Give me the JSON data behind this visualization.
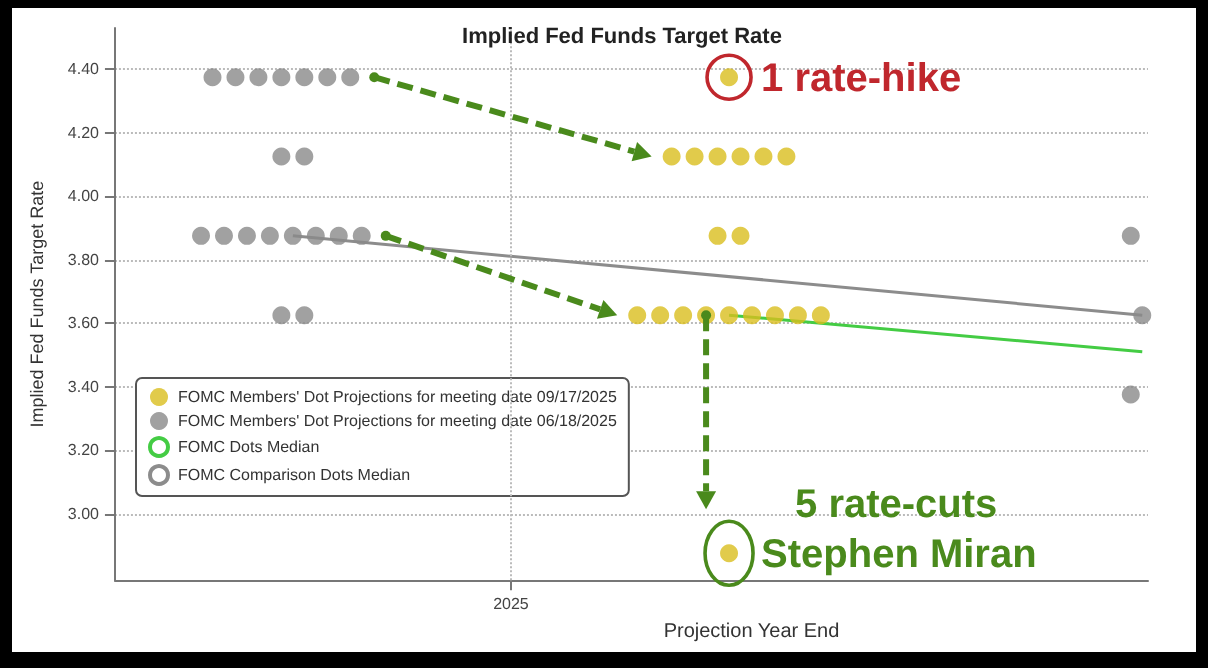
{
  "chart_data": {
    "type": "scatter",
    "title": "Implied Fed Funds Target Rate",
    "xlabel": "Projection Year End",
    "ylabel": "Implied Fed Funds Target Rate",
    "categories": [
      null,
      null,
      null,
      null,
      null,
      null,
      null,
      null,
      null,
      null,
      null,
      null,
      null,
      null,
      null,
      null,
      null,
      null,
      null,
      null,
      null,
      null,
      null,
      null,
      null,
      null,
      null,
      null,
      null,
      null,
      null,
      null,
      null,
      null,
      "2025",
      null,
      null,
      null,
      null,
      null,
      null,
      null,
      null,
      null,
      null,
      null,
      null,
      null,
      null,
      null,
      null,
      null,
      null,
      null,
      null,
      null,
      null,
      null,
      null,
      null,
      null,
      null,
      null,
      null,
      null,
      null,
      null,
      null,
      null,
      null,
      null,
      null,
      null,
      null,
      null,
      null,
      null,
      null,
      null,
      null,
      null,
      null,
      null,
      null,
      null,
      null,
      null,
      null,
      null,
      null
    ],
    "series": [
      {
        "name": "FOMC Members' Dot Projections for meeting date 09/17/2025",
        "color": "#d9be1e",
        "marker": "circle",
        "values": [
          null,
          null,
          null,
          null,
          null,
          null,
          null,
          null,
          null,
          null,
          null,
          null,
          null,
          null,
          null,
          null,
          null,
          null,
          null,
          null,
          null,
          null,
          null,
          null,
          null,
          null,
          null,
          null,
          null,
          null,
          null,
          null,
          null,
          null,
          null,
          null,
          null,
          null,
          null,
          null,
          null,
          null,
          null,
          null,
          null,
          3.625,
          null,
          3.625,
          4.125,
          3.625,
          4.125,
          3.625,
          4.125,
          3.625,
          4.125,
          3.625,
          4.125,
          3.625,
          4.125,
          3.625,
          null,
          3.625,
          null,
          null,
          null,
          null,
          null,
          null,
          null,
          null,
          null,
          null,
          null,
          null,
          null,
          null,
          null,
          null,
          null,
          null,
          null,
          null,
          null,
          null,
          null,
          null,
          null,
          null,
          null,
          null
        ]
      },
      {
        "color": "#d9be1e",
        "marker": "circle",
        "values": [
          null,
          null,
          null,
          null,
          null,
          null,
          null,
          null,
          null,
          null,
          null,
          null,
          null,
          null,
          null,
          null,
          null,
          null,
          null,
          null,
          null,
          null,
          null,
          null,
          null,
          null,
          null,
          null,
          null,
          null,
          null,
          null,
          null,
          null,
          null,
          null,
          null,
          null,
          null,
          null,
          null,
          null,
          null,
          null,
          null,
          null,
          null,
          null,
          null,
          null,
          null,
          null,
          3.875,
          4.375,
          3.875,
          null,
          null,
          null,
          null,
          null,
          null,
          null,
          null,
          null,
          null,
          null,
          null,
          null,
          null,
          null,
          null,
          null,
          null,
          null,
          null,
          null,
          null,
          null,
          null,
          null,
          null,
          null,
          null,
          null,
          null,
          null,
          null,
          null,
          null,
          null
        ]
      },
      {
        "color": "#d9be1e",
        "marker": "circle",
        "values": [
          null,
          null,
          null,
          null,
          null,
          null,
          null,
          null,
          null,
          null,
          null,
          null,
          null,
          null,
          null,
          null,
          null,
          null,
          null,
          null,
          null,
          null,
          null,
          null,
          null,
          null,
          null,
          null,
          null,
          null,
          null,
          null,
          null,
          null,
          null,
          null,
          null,
          null,
          null,
          null,
          null,
          null,
          null,
          null,
          null,
          null,
          null,
          null,
          null,
          null,
          null,
          null,
          null,
          2.875,
          null,
          null,
          null,
          null,
          null,
          null,
          null,
          null,
          null,
          null,
          null,
          null,
          null,
          null,
          null,
          null,
          null,
          null,
          null,
          null,
          null,
          null,
          null,
          null,
          null,
          null,
          null,
          null,
          null,
          null,
          null,
          null,
          null,
          null,
          null,
          null
        ]
      },
      {
        "name": "FOMC Members' Dot Projections for meeting date 06/18/2025",
        "color": "#8a8a8a",
        "marker": "circle",
        "values": [
          null,
          null,
          null,
          null,
          null,
          null,
          null,
          3.875,
          4.375,
          3.875,
          4.375,
          3.875,
          4.375,
          3.875,
          4.375,
          3.875,
          4.375,
          3.875,
          4.375,
          3.875,
          4.375,
          3.875,
          null,
          null,
          null,
          null,
          null,
          null,
          null,
          null,
          null,
          null,
          null,
          null,
          null,
          null,
          null,
          null,
          null,
          null,
          null,
          null,
          null,
          null,
          null,
          null,
          null,
          null,
          null,
          null,
          null,
          null,
          null,
          null,
          null,
          null,
          null,
          null,
          null,
          null,
          null,
          null,
          null,
          null,
          null,
          null,
          null,
          null,
          null,
          null,
          null,
          null,
          null,
          null,
          null,
          null,
          null,
          null,
          null,
          null,
          null,
          null,
          null,
          null,
          null,
          null,
          null,
          null,
          3.875,
          3.625
        ]
      },
      {
        "color": "#8a8a8a",
        "marker": "circle",
        "values": [
          null,
          null,
          null,
          null,
          null,
          null,
          null,
          null,
          null,
          null,
          null,
          null,
          null,
          null,
          4.125,
          null,
          4.125,
          null,
          null,
          null,
          null,
          null,
          null,
          null,
          null,
          null,
          null,
          null,
          null,
          null,
          null,
          null,
          null,
          null,
          null,
          null,
          null,
          null,
          null,
          null,
          null,
          null,
          null,
          null,
          null,
          null,
          null,
          null,
          null,
          null,
          null,
          null,
          null,
          null,
          null,
          null,
          null,
          null,
          null,
          null,
          null,
          null,
          null,
          null,
          null,
          null,
          null,
          null,
          null,
          null,
          null,
          null,
          null,
          null,
          null,
          null,
          null,
          null,
          null,
          null,
          null,
          null,
          null,
          null,
          null,
          null,
          null,
          null,
          3.375,
          null
        ]
      },
      {
        "color": "#8a8a8a",
        "marker": "circle",
        "values": [
          null,
          null,
          null,
          null,
          null,
          null,
          null,
          null,
          null,
          null,
          null,
          null,
          null,
          null,
          3.625,
          null,
          3.625,
          null,
          null,
          null,
          null,
          null,
          null,
          null,
          null,
          null,
          null,
          null,
          null,
          null,
          null,
          null,
          null,
          null,
          null,
          null,
          null,
          null,
          null,
          null,
          null,
          null,
          null,
          null,
          null,
          null,
          null,
          null,
          null,
          null,
          null,
          null,
          null,
          null,
          null,
          null,
          null,
          null,
          null,
          null,
          null,
          null,
          null,
          null,
          null,
          null,
          null,
          null,
          null,
          null,
          null,
          null,
          null,
          null,
          null,
          null,
          null,
          null,
          null,
          null,
          null,
          null,
          null,
          null,
          null,
          null,
          null,
          null,
          null,
          null
        ]
      },
      {
        "type": "line",
        "name": "FOMC Dots Median",
        "color": "#44cc44",
        "marker": "none",
        "values": [
          null,
          null,
          null,
          null,
          null,
          null,
          null,
          null,
          null,
          null,
          null,
          null,
          null,
          null,
          null,
          null,
          null,
          null,
          null,
          null,
          null,
          null,
          null,
          null,
          null,
          null,
          null,
          null,
          null,
          null,
          null,
          null,
          null,
          null,
          null,
          null,
          null,
          null,
          null,
          null,
          null,
          null,
          null,
          null,
          null,
          null,
          null,
          null,
          null,
          null,
          null,
          null,
          null,
          3.625,
          null,
          null,
          null,
          null,
          null,
          null,
          null,
          null,
          null,
          null,
          null,
          null,
          null,
          null,
          null,
          null,
          null,
          null,
          null,
          null,
          null,
          null,
          null,
          null,
          null,
          null,
          null,
          null,
          null,
          null,
          null,
          null,
          null,
          null,
          null,
          3.51
        ]
      },
      {
        "type": "line",
        "name": "FOMC Comparison Dots Median",
        "color": "#8c8c8c",
        "marker": "none",
        "values": [
          null,
          null,
          null,
          null,
          null,
          null,
          null,
          null,
          null,
          null,
          null,
          null,
          null,
          null,
          null,
          3.875,
          null,
          null,
          null,
          null,
          null,
          null,
          null,
          null,
          null,
          null,
          null,
          null,
          null,
          null,
          null,
          null,
          null,
          null,
          null,
          null,
          null,
          null,
          null,
          null,
          null,
          null,
          null,
          null,
          null,
          null,
          null,
          null,
          null,
          null,
          null,
          null,
          null,
          null,
          null,
          null,
          null,
          null,
          null,
          null,
          null,
          null,
          null,
          null,
          null,
          null,
          null,
          null,
          null,
          null,
          null,
          null,
          null,
          null,
          null,
          null,
          null,
          null,
          null,
          null,
          null,
          null,
          null,
          null,
          null,
          null,
          null,
          null,
          null,
          3.625
        ]
      }
    ],
    "ylim": [
      2.79,
      4.53
    ],
    "yticks": [
      {
        "value": 3,
        "label": "3.00"
      },
      {
        "value": 3.2,
        "label": "3.20"
      },
      {
        "value": 3.4,
        "label": "3.40"
      },
      {
        "value": 3.6,
        "label": "3.60"
      },
      {
        "value": 3.8,
        "label": "3.80"
      },
      {
        "value": 4,
        "label": "4.00"
      },
      {
        "value": 4.2,
        "label": "4.20"
      },
      {
        "value": 4.4,
        "label": "4.40"
      }
    ],
    "grid": true,
    "legend": "bottom left",
    "annotations": [
      "1 rate-hike",
      "5 rate-cuts",
      "Stephen Miran"
    ]
  }
}
